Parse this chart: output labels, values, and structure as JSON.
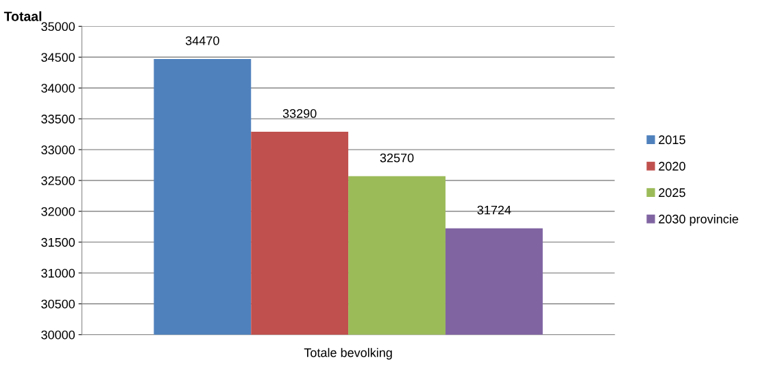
{
  "chart_data": {
    "type": "bar",
    "title": "Totaal",
    "categories": [
      "Totale bevolking"
    ],
    "series": [
      {
        "name": "2015",
        "color": "#4f81bd",
        "values": [
          34470
        ]
      },
      {
        "name": "2020",
        "color": "#c0504d",
        "values": [
          33290
        ]
      },
      {
        "name": "2025",
        "color": "#9bbb59",
        "values": [
          32570
        ]
      },
      {
        "name": "2030 provincie",
        "color": "#8064a2",
        "values": [
          31724
        ]
      }
    ],
    "ylim": [
      30000,
      35000
    ],
    "yticks": [
      30000,
      30500,
      31000,
      31500,
      32000,
      32500,
      33000,
      33500,
      34000,
      34500,
      35000
    ],
    "grid": "y",
    "legend": "right",
    "data_labels": true
  }
}
